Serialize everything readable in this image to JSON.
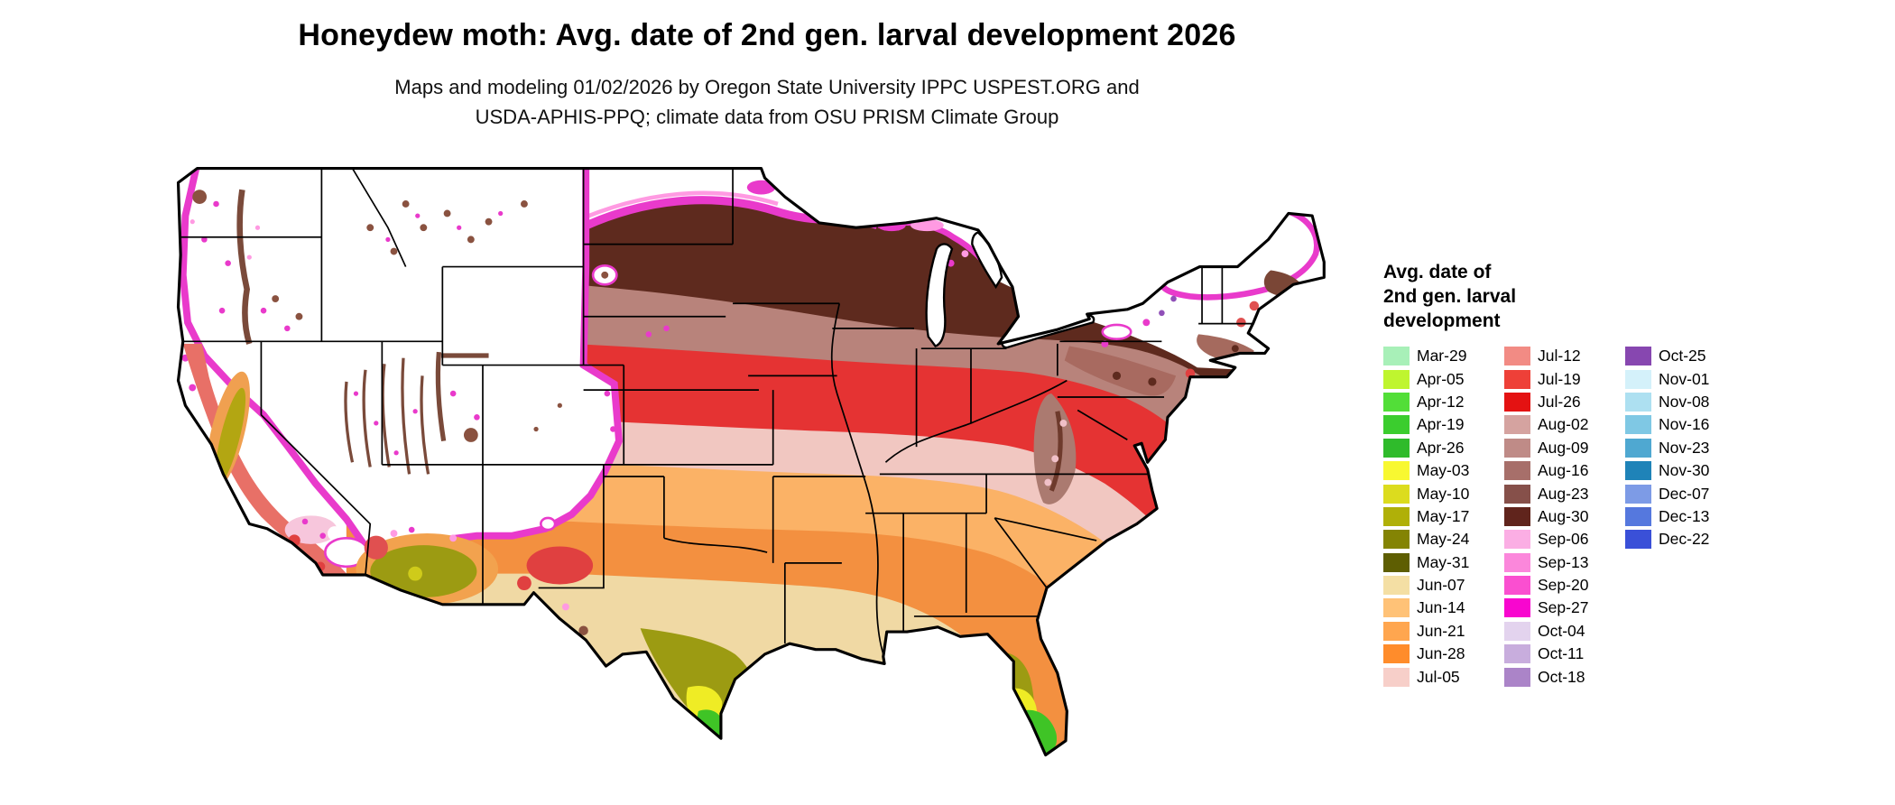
{
  "header": {
    "title": "Honeydew moth: Avg. date of 2nd gen. larval development 2026",
    "subtitle_line1": "Maps and modeling 01/02/2026 by Oregon State University IPPC USPEST.ORG and",
    "subtitle_line2": "USDA-APHIS-PPQ; climate data from OSU PRISM Climate Group"
  },
  "legend": {
    "title_line1": "Avg. date of",
    "title_line2": "2nd gen. larval",
    "title_line3": "development",
    "columns": [
      [
        {
          "label": "Mar-29",
          "color": "#A8F0B8"
        },
        {
          "label": "Apr-05",
          "color": "#BFF52F"
        },
        {
          "label": "Apr-12",
          "color": "#52DE38"
        },
        {
          "label": "Apr-19",
          "color": "#3BCD2E"
        },
        {
          "label": "Apr-26",
          "color": "#2FBB2B"
        },
        {
          "label": "May-03",
          "color": "#F8F831"
        },
        {
          "label": "May-10",
          "color": "#DCDC1E"
        },
        {
          "label": "May-17",
          "color": "#B0B008"
        },
        {
          "label": "May-24",
          "color": "#848404"
        },
        {
          "label": "May-31",
          "color": "#5E5E02"
        },
        {
          "label": "Jun-07",
          "color": "#F4DFA4"
        },
        {
          "label": "Jun-14",
          "color": "#FFC277"
        },
        {
          "label": "Jun-21",
          "color": "#FFA64F"
        },
        {
          "label": "Jun-28",
          "color": "#FF8C2B"
        },
        {
          "label": "Jul-05",
          "color": "#F7CFC9"
        }
      ],
      [
        {
          "label": "Jul-12",
          "color": "#F28B84"
        },
        {
          "label": "Jul-19",
          "color": "#EE4038"
        },
        {
          "label": "Jul-26",
          "color": "#E41212"
        },
        {
          "label": "Aug-02",
          "color": "#D5A3A0"
        },
        {
          "label": "Aug-09",
          "color": "#BF8B87"
        },
        {
          "label": "Aug-16",
          "color": "#A76F6A"
        },
        {
          "label": "Aug-23",
          "color": "#86504A"
        },
        {
          "label": "Aug-30",
          "color": "#60241C"
        },
        {
          "label": "Sep-06",
          "color": "#FBAEE4"
        },
        {
          "label": "Sep-13",
          "color": "#FB87DB"
        },
        {
          "label": "Sep-20",
          "color": "#FA4FD0"
        },
        {
          "label": "Sep-27",
          "color": "#F806CF"
        },
        {
          "label": "Oct-04",
          "color": "#E3D3EE"
        },
        {
          "label": "Oct-11",
          "color": "#C8ADDD"
        },
        {
          "label": "Oct-18",
          "color": "#AB84C8"
        }
      ],
      [
        {
          "label": "Oct-25",
          "color": "#8747B0"
        },
        {
          "label": "Nov-01",
          "color": "#D4F1FA"
        },
        {
          "label": "Nov-08",
          "color": "#ADE0F1"
        },
        {
          "label": "Nov-16",
          "color": "#7FC8E4"
        },
        {
          "label": "Nov-23",
          "color": "#4FA8D1"
        },
        {
          "label": "Nov-30",
          "color": "#1F83B8"
        },
        {
          "label": "Dec-07",
          "color": "#7D9BE6"
        },
        {
          "label": "Dec-13",
          "color": "#5578DE"
        },
        {
          "label": "Dec-22",
          "color": "#3A50D8"
        }
      ]
    ]
  },
  "chart_data": {
    "type": "heatmap",
    "title": "Honeydew moth: Avg. date of 2nd gen. larval development 2026",
    "legend_title": "Avg. date of 2nd gen. larval development",
    "legend_dates": [
      "Mar-29",
      "Apr-05",
      "Apr-12",
      "Apr-19",
      "Apr-26",
      "May-03",
      "May-10",
      "May-17",
      "May-24",
      "May-31",
      "Jun-07",
      "Jun-14",
      "Jun-21",
      "Jun-28",
      "Jul-05",
      "Jul-12",
      "Jul-19",
      "Jul-26",
      "Aug-02",
      "Aug-09",
      "Aug-16",
      "Aug-23",
      "Aug-30",
      "Sep-06",
      "Sep-13",
      "Sep-20",
      "Sep-27",
      "Oct-04",
      "Oct-11",
      "Oct-18",
      "Oct-25",
      "Nov-01",
      "Nov-08",
      "Nov-16",
      "Nov-23",
      "Nov-30",
      "Dec-07",
      "Dec-13",
      "Dec-22"
    ]
  }
}
